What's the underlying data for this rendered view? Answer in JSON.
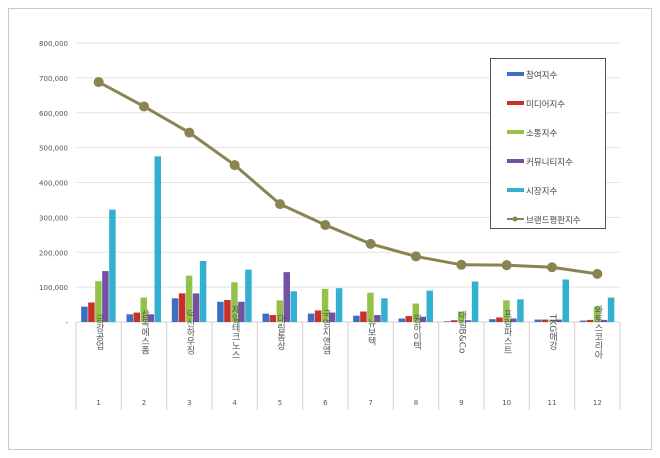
{
  "chart_data": {
    "type": "bar",
    "title": "",
    "xlabel": "",
    "ylabel": "",
    "ylim": [
      0,
      800000
    ],
    "yticks": [
      "-",
      "100,000",
      "200,000",
      "300,000",
      "400,000",
      "500,000",
      "600,000",
      "700,000",
      "800,000"
    ],
    "grid": true,
    "legend_position": "top-right",
    "categories": [
      "금강공업",
      "삼목에스폼",
      "덕신하우징",
      "제일테크노스",
      "대림통상",
      "국영지앤엠",
      "뉴보텍",
      "원하이텍",
      "대림B&Co",
      "프럼파스트",
      "TKG애강",
      "와토스코리아"
    ],
    "ranks": [
      "1",
      "2",
      "3",
      "4",
      "5",
      "6",
      "7",
      "8",
      "9",
      "10",
      "11",
      "12"
    ],
    "series": [
      {
        "name": "참여지수",
        "type": "bar",
        "color": "#3a6fc4",
        "values": [
          44000,
          22000,
          68000,
          58000,
          24000,
          24000,
          18000,
          10000,
          2000,
          8000,
          7000,
          4000
        ]
      },
      {
        "name": "미디어지수",
        "type": "bar",
        "color": "#c9302c",
        "values": [
          56000,
          27000,
          82000,
          63000,
          20000,
          33000,
          30000,
          17000,
          5000,
          13000,
          7000,
          6000
        ]
      },
      {
        "name": "소통지수",
        "type": "bar",
        "color": "#94c14a",
        "values": [
          117000,
          70000,
          133000,
          114000,
          62000,
          95000,
          84000,
          53000,
          30000,
          62000,
          7000,
          44000
        ]
      },
      {
        "name": "커뮤니티지수",
        "type": "bar",
        "color": "#7352a3",
        "values": [
          146000,
          22000,
          82000,
          58000,
          143000,
          27000,
          20000,
          15000,
          5000,
          10000,
          7000,
          6000
        ]
      },
      {
        "name": "시장지수",
        "type": "bar",
        "color": "#33b0d0",
        "values": [
          322000,
          475000,
          175000,
          150000,
          88000,
          97000,
          68000,
          90000,
          116000,
          65000,
          122000,
          70000
        ]
      },
      {
        "name": "브랜드평판지수",
        "type": "line",
        "color": "#8a8450",
        "values": [
          688000,
          618000,
          543000,
          450000,
          338000,
          278000,
          224000,
          188000,
          164000,
          163000,
          157000,
          138000
        ]
      }
    ]
  }
}
